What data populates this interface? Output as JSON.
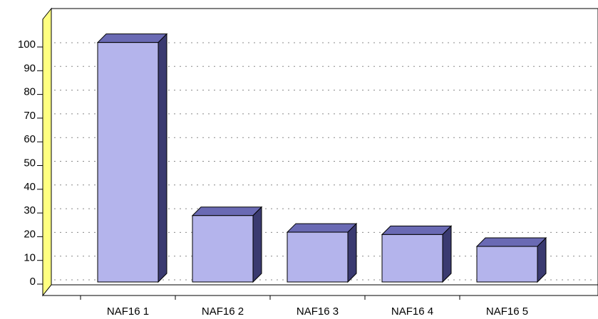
{
  "chart_data": {
    "type": "bar3d",
    "categories": [
      "NAF16 1",
      "NAF16 2",
      "NAF16 3",
      "NAF16 4",
      "NAF16 5"
    ],
    "values": [
      101,
      28,
      21,
      20,
      15
    ],
    "color": "#b4b4ec",
    "ylim": [
      0,
      110
    ],
    "yticks": [
      0,
      10,
      20,
      30,
      40,
      50,
      60,
      70,
      80,
      90,
      100
    ],
    "grid": true
  }
}
